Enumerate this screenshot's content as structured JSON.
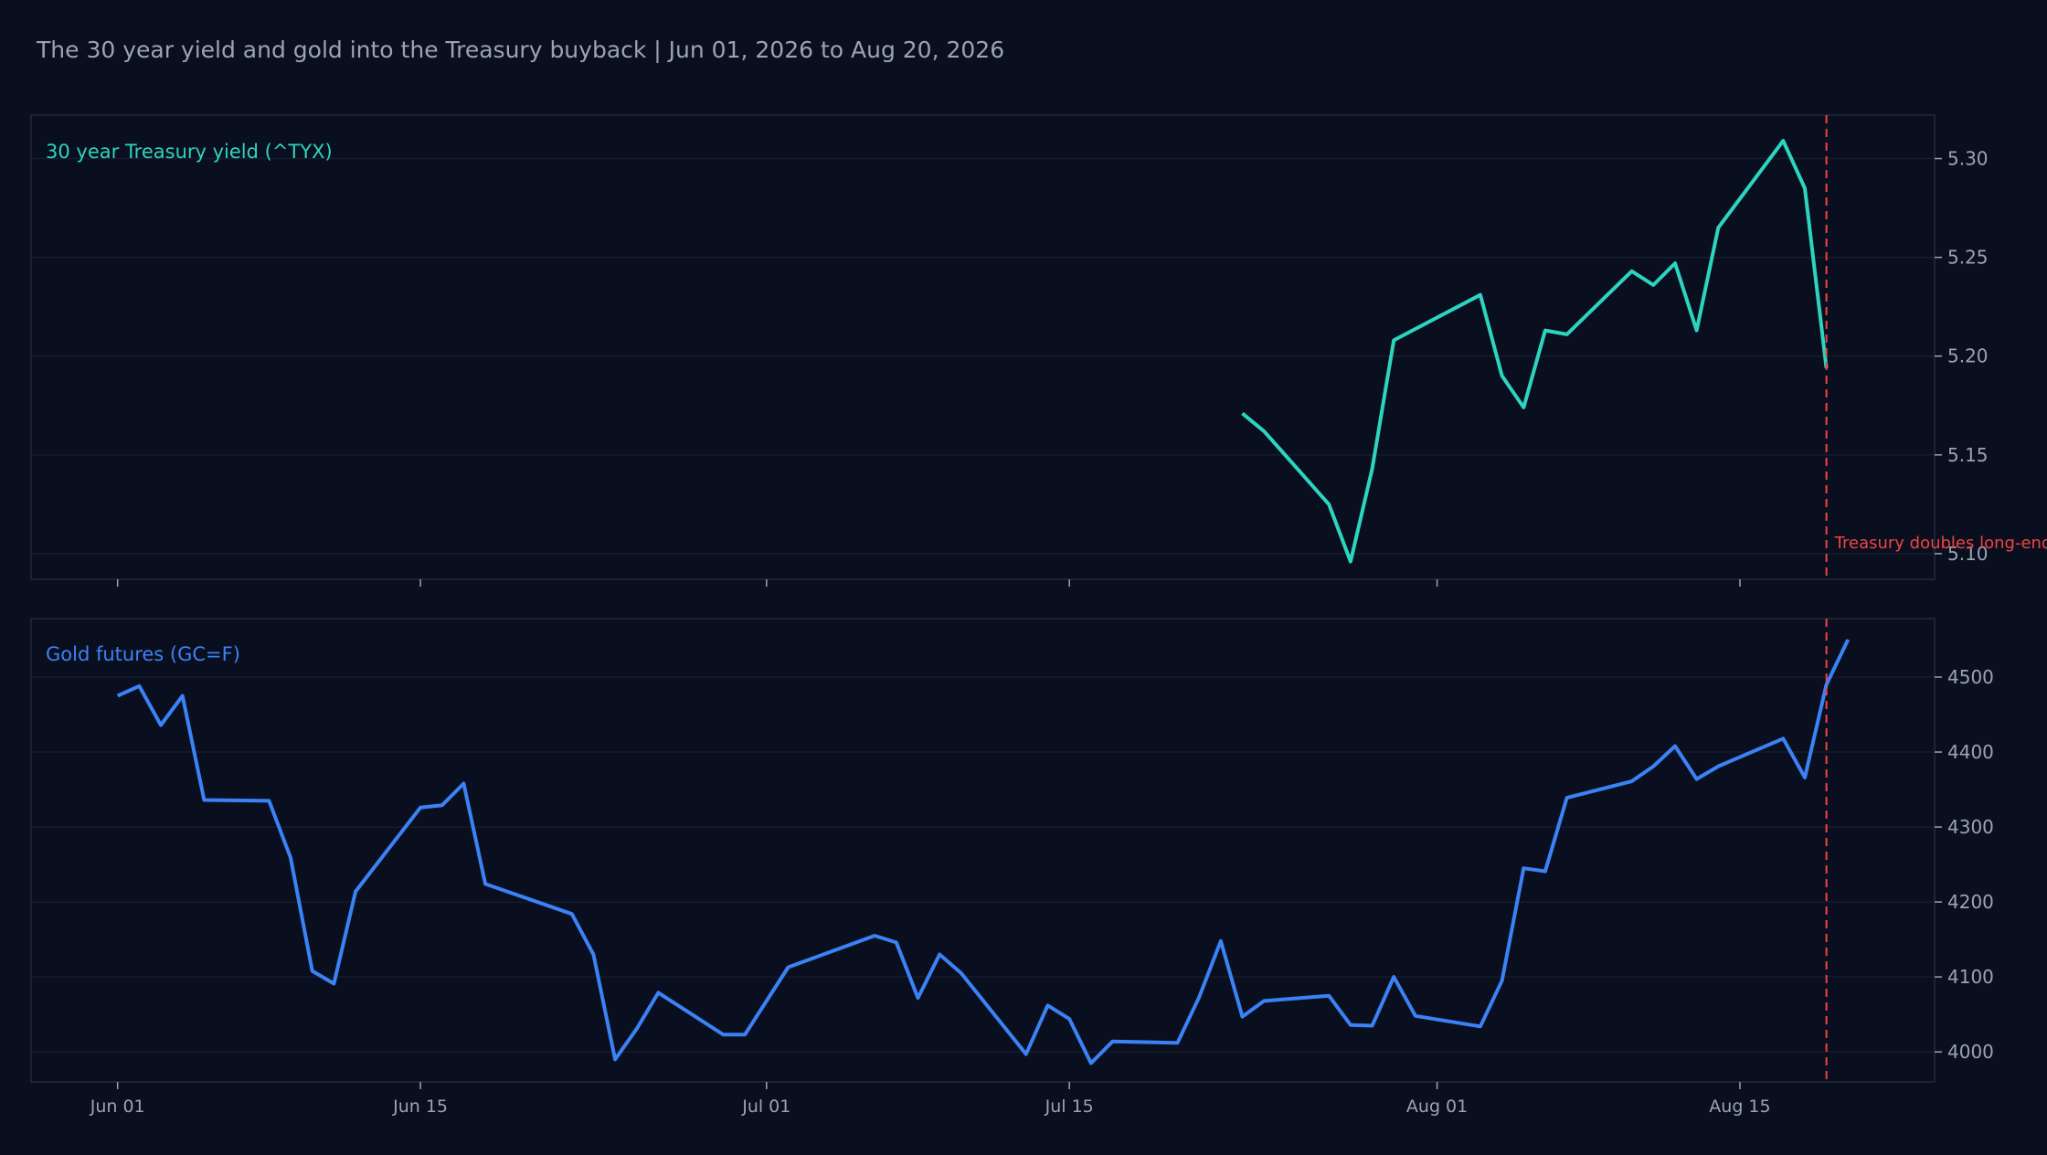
{
  "title": "The 30 year yield and gold into the Treasury buyback | Jun 01, 2026 to Aug 20, 2026",
  "colors": {
    "background": "#0a0f1f",
    "panel_border": "#1c2336",
    "grid": "#161c2d",
    "tick_text": "#9aa3b5",
    "title_text": "#9aa3b5",
    "yield_line": "#2dd4bf",
    "gold_line": "#3b82f6",
    "event_line": "#ef4444"
  },
  "chart_data": [
    {
      "type": "line",
      "panel": "top",
      "series": [
        {
          "name": "30 year Treasury yield (^TYX)",
          "x": [
            "2026-07-23",
            "2026-07-24",
            "2026-07-27",
            "2026-07-28",
            "2026-07-29",
            "2026-07-30",
            "2026-08-03",
            "2026-08-04",
            "2026-08-05",
            "2026-08-06",
            "2026-08-07",
            "2026-08-10",
            "2026-08-11",
            "2026-08-12",
            "2026-08-13",
            "2026-08-14",
            "2026-08-17",
            "2026-08-18",
            "2026-08-19"
          ],
          "y": [
            5.171,
            5.162,
            5.125,
            5.096,
            5.143,
            5.208,
            5.231,
            5.19,
            5.174,
            5.213,
            5.211,
            5.243,
            5.236,
            5.247,
            5.213,
            5.265,
            5.309,
            5.285,
            5.194
          ]
        }
      ],
      "ylim": [
        5.087,
        5.322
      ],
      "yticks": [
        "5.10",
        "5.15",
        "5.20",
        "5.25",
        "5.30"
      ],
      "annotation": {
        "x": "2026-08-19",
        "text": "Treasury doubles long-end"
      }
    },
    {
      "type": "line",
      "panel": "bottom",
      "series": [
        {
          "name": "Gold futures (GC=F)",
          "x": [
            "2026-06-01",
            "2026-06-02",
            "2026-06-03",
            "2026-06-04",
            "2026-06-05",
            "2026-06-08",
            "2026-06-09",
            "2026-06-10",
            "2026-06-11",
            "2026-06-12",
            "2026-06-15",
            "2026-06-16",
            "2026-06-17",
            "2026-06-18",
            "2026-06-22",
            "2026-06-23",
            "2026-06-24",
            "2026-06-25",
            "2026-06-26",
            "2026-06-29",
            "2026-06-30",
            "2026-07-02",
            "2026-07-06",
            "2026-07-07",
            "2026-07-08",
            "2026-07-09",
            "2026-07-10",
            "2026-07-13",
            "2026-07-14",
            "2026-07-15",
            "2026-07-16",
            "2026-07-17",
            "2026-07-20",
            "2026-07-21",
            "2026-07-22",
            "2026-07-23",
            "2026-07-24",
            "2026-07-27",
            "2026-07-28",
            "2026-07-29",
            "2026-07-30",
            "2026-07-31",
            "2026-08-03",
            "2026-08-04",
            "2026-08-05",
            "2026-08-06",
            "2026-08-07",
            "2026-08-10",
            "2026-08-11",
            "2026-08-12",
            "2026-08-13",
            "2026-08-14",
            "2026-08-17",
            "2026-08-18",
            "2026-08-19",
            "2026-08-20"
          ],
          "y": [
            4475,
            4488,
            4436,
            4475,
            4336,
            4335,
            4259,
            4108,
            4091,
            4214,
            4326,
            4329,
            4358,
            4224,
            4184,
            4130,
            3990,
            4031,
            4079,
            4023,
            4023,
            4113,
            4155,
            4146,
            4072,
            4130,
            4105,
            3997,
            4062,
            4044,
            3985,
            4014,
            4012,
            4073,
            4148,
            4047,
            4068,
            4075,
            4036,
            4035,
            4100,
            4048,
            4034,
            4095,
            4245,
            4241,
            4339,
            4361,
            4381,
            4408,
            4364,
            4381,
            4418,
            4366,
            4490,
            4550
          ]
        }
      ],
      "ylim": [
        3960,
        4578
      ],
      "yticks": [
        "4000",
        "4100",
        "4200",
        "4300",
        "4400",
        "4500"
      ]
    }
  ],
  "x_axis": {
    "range": [
      "2026-05-28",
      "2026-08-24"
    ],
    "ticks": [
      {
        "date": "2026-06-01",
        "label": "Jun 01"
      },
      {
        "date": "2026-06-15",
        "label": "Jun 15"
      },
      {
        "date": "2026-07-01",
        "label": "Jul 01"
      },
      {
        "date": "2026-07-15",
        "label": "Jul 15"
      },
      {
        "date": "2026-08-01",
        "label": "Aug 01"
      },
      {
        "date": "2026-08-15",
        "label": "Aug 15"
      }
    ]
  }
}
